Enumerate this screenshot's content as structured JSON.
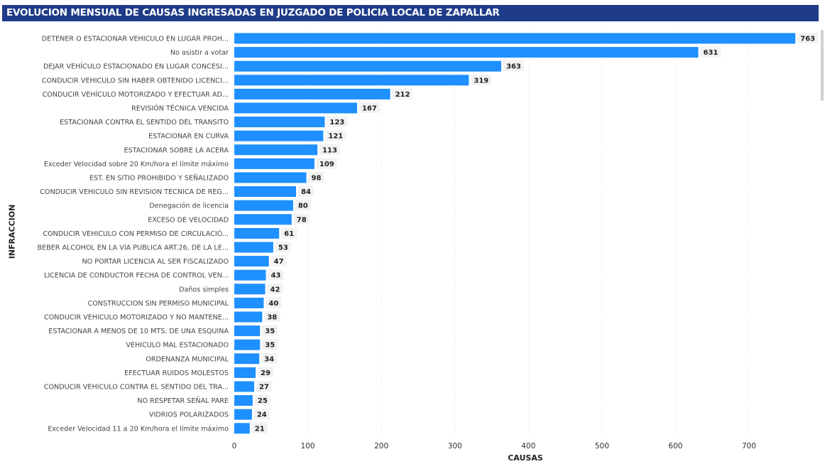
{
  "title": "EVOLUCION MENSUAL DE CAUSAS INGRESADAS EN JUZGADO DE POLICIA LOCAL DE ZAPALLAR",
  "chart_data": {
    "type": "bar",
    "orientation": "horizontal",
    "title": "EVOLUCION MENSUAL DE CAUSAS INGRESADAS EN JUZGADO DE POLICIA LOCAL DE ZAPALLAR",
    "xlabel": "CAUSAS",
    "ylabel": "INFRACCION",
    "xlim": [
      0,
      780
    ],
    "x_ticks": [
      0,
      100,
      200,
      300,
      400,
      500,
      600,
      700
    ],
    "grid": true,
    "bar_color": "#1e90ff",
    "categories": [
      "DETENER O ESTACIONAR VEHICULO EN LUGAR PROH...",
      "No asistir a votar",
      "DEJAR VEHÍCULO ESTACIONADO EN LUGAR CONCESI...",
      "CONDUCIR VEHICULO SIN HABER OBTENIDO LICENCI...",
      "CONDUCIR VEHÍCULO MOTORIZADO Y EFECTUAR AD...",
      "REVISIÓN TÉCNICA VENCIDA",
      "ESTACIONAR CONTRA EL SENTIDO DEL TRANSITO",
      "ESTACIONAR EN CURVA",
      "ESTACIONAR SOBRE LA ACERA",
      "Exceder Velocidad sobre 20 Km/hora el límite máximo",
      "EST. EN SITIO PROHIBIDO Y SEÑALIZADO",
      "CONDUCIR VEHICULO SIN REVISION TECNICA DE REG...",
      "Denegación de licencia",
      "EXCESO DE VELOCIDAD",
      "CONDUCIR VEHICULO CON PERMISO DE CIRCULACIÓ...",
      "BEBER ALCOHOL EN LA VIA PUBLICA ART.26, DE LA LE...",
      "NO PORTAR LICENCIA AL SER FISCALIZADO",
      "LICENCIA DE CONDUCTOR FECHA DE CONTROL VEN...",
      "Daños simples",
      "CONSTRUCCION SIN PERMISO MUNICIPAL",
      "CONDUCIR VEHICULO MOTORIZADO Y NO MANTENE...",
      "ESTACIONAR A MENOS DE 10 MTS. DE UNA ESQUINA",
      "VEHICULO MAL ESTACIONADO",
      "ORDENANZA MUNICIPAL",
      "EFECTUAR RUIDOS MOLESTOS",
      "CONDUCIR VEHICULO CONTRA EL SENTIDO DEL TRA...",
      "NO RESPETAR SEÑAL PARE",
      "VIDRIOS POLARIZADOS",
      "Exceder Velocidad 11 a 20 Km/hora el límite máximo"
    ],
    "values": [
      763,
      631,
      363,
      319,
      212,
      167,
      123,
      121,
      113,
      109,
      98,
      84,
      80,
      78,
      61,
      53,
      47,
      43,
      42,
      40,
      38,
      35,
      35,
      34,
      29,
      27,
      25,
      24,
      21
    ]
  }
}
